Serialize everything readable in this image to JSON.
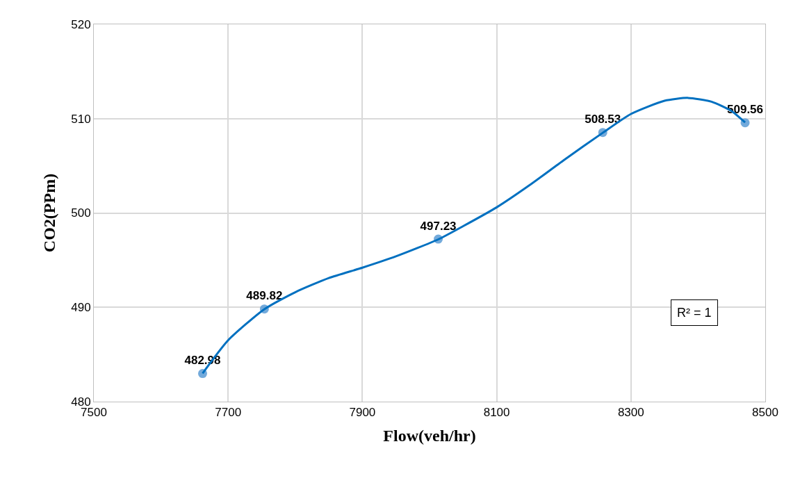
{
  "chart_data": {
    "type": "scatter",
    "xlabel": "Flow(veh/hr)",
    "ylabel": "CO2(PPm)",
    "x": [
      7662,
      7754,
      8013,
      8258,
      8470
    ],
    "series": [
      {
        "color": "#5b9bd5",
        "values": [
          482.98,
          489.82,
          497.23,
          508.53,
          509.56
        ],
        "value_labels": [
          "482.98",
          "489.82",
          "497.23",
          "508.53",
          "509.56"
        ],
        "marker": "circle"
      },
      {
        "type": "line",
        "color": "#0070c0",
        "marker": "none",
        "x": [
          7662,
          7700,
          7754,
          7800,
          7850,
          7900,
          7950,
          8013,
          8050,
          8100,
          8150,
          8200,
          8258,
          8300,
          8350,
          8385,
          8420,
          8450,
          8470
        ],
        "values": [
          483,
          486.5,
          489.8,
          491.6,
          493.1,
          494.2,
          495.4,
          497.2,
          498.6,
          500.6,
          503,
          505.6,
          508.5,
          510.5,
          511.9,
          512.2,
          511.8,
          510.8,
          509.6
        ]
      }
    ],
    "annotations": [
      {
        "text": "R² = 1"
      }
    ],
    "xlim": [
      7500,
      8500
    ],
    "xticks": [
      7500,
      7700,
      7900,
      8100,
      8300,
      8500
    ],
    "ylim": [
      480,
      520
    ],
    "yticks": [
      480,
      490,
      500,
      510,
      520
    ],
    "grid": true,
    "legend": false
  }
}
